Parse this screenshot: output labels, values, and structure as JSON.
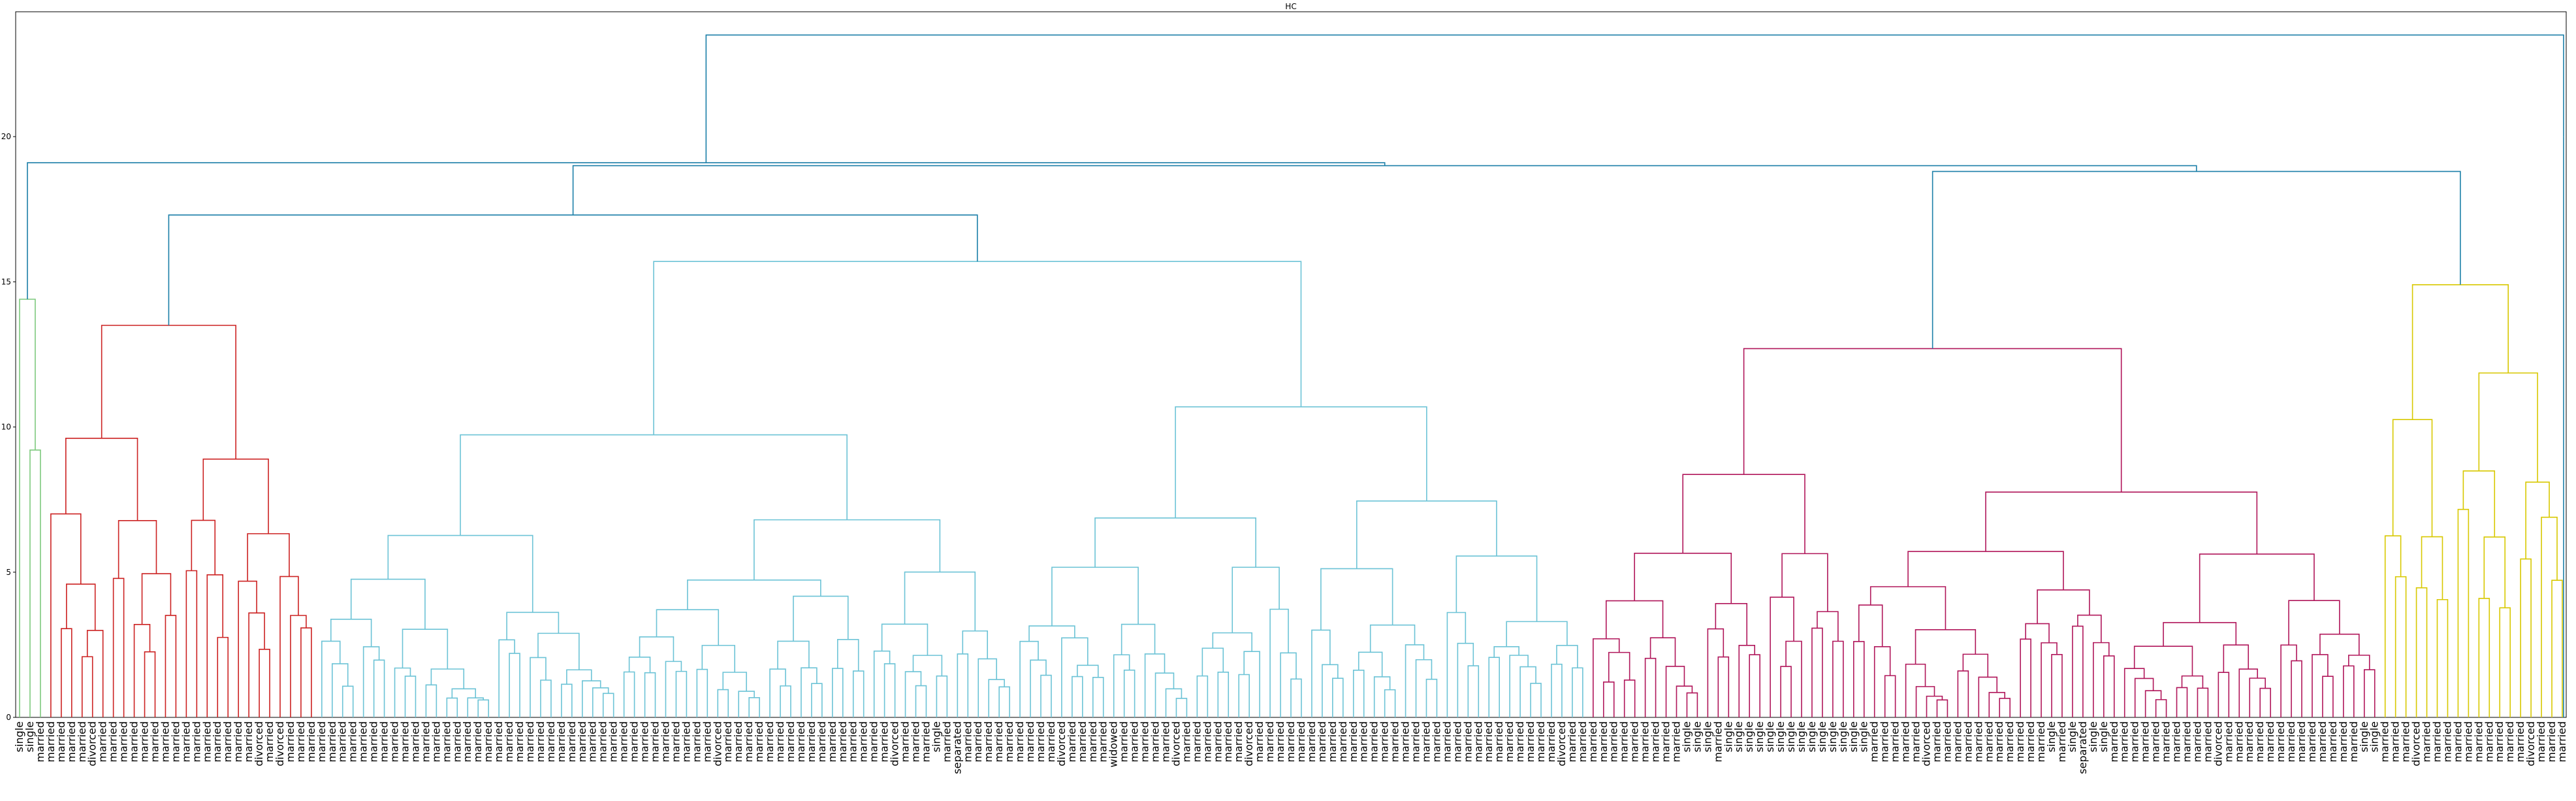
{
  "chart_data": {
    "type": "dendrogram",
    "title": "HC",
    "xlabel": "",
    "ylabel": "",
    "ylim": [
      0,
      24.3
    ],
    "yticks": [
      0,
      5,
      10,
      15,
      20
    ],
    "grid": false,
    "colors": {
      "top": "#1b7fa8",
      "green": "#7dc97d",
      "red": "#cc2222",
      "cyan": "#6cc3d6",
      "magenta": "#b0165a",
      "yellow": "#d8c800"
    },
    "clusters": [
      {
        "color": "green",
        "count": 3,
        "height": 14.4
      },
      {
        "color": "red",
        "count": 26,
        "height": 13.5
      },
      {
        "color": "cyan",
        "count": 122,
        "height": 15.7
      },
      {
        "color": "magenta",
        "count": 76,
        "height": 12.7
      },
      {
        "color": "yellow",
        "count": 18,
        "height": 14.9
      }
    ],
    "merges": [
      {
        "name": "red-cyan",
        "height": 17.3
      },
      {
        "name": "redcyan-magentayellow",
        "height": 19.0
      },
      {
        "name": "magenta-yellow",
        "height": 18.8
      },
      {
        "name": "green-rest",
        "height": 19.1
      },
      {
        "name": "root",
        "height": 23.5
      }
    ],
    "leaf_labels": {
      "green": [
        "single",
        "single",
        "married"
      ],
      "red": [
        "married",
        "married",
        "married",
        "married",
        "divorced",
        "married",
        "married",
        "married",
        "married",
        "married",
        "married",
        "married",
        "married",
        "married",
        "married",
        "married",
        "married",
        "married",
        "married",
        "married",
        "divorced",
        "married",
        "divorced",
        "married",
        "married",
        "married"
      ],
      "cyan": [
        "married",
        "married",
        "married",
        "married",
        "married",
        "married",
        "married",
        "married",
        "married",
        "married",
        "married",
        "married",
        "married",
        "married",
        "married",
        "married",
        "married",
        "married",
        "married",
        "married",
        "married",
        "married",
        "married",
        "married",
        "married",
        "married",
        "married",
        "married",
        "married",
        "married",
        "married",
        "married",
        "married",
        "married",
        "married",
        "married",
        "married",
        "married",
        "divorced",
        "married",
        "married",
        "married",
        "married",
        "married",
        "married",
        "married",
        "married",
        "married",
        "married",
        "married",
        "married",
        "married",
        "married",
        "married",
        "married",
        "divorced",
        "married",
        "married",
        "married",
        "single",
        "married",
        "separated",
        "married",
        "married",
        "married",
        "married",
        "married",
        "married",
        "married",
        "married",
        "married",
        "divorced",
        "married",
        "married",
        "married",
        "married",
        "widowed",
        "married",
        "married",
        "married",
        "married",
        "married",
        "divorced",
        "married",
        "married",
        "married",
        "married",
        "married",
        "married",
        "divorced",
        "married",
        "married",
        "married",
        "married",
        "married",
        "married",
        "married",
        "married",
        "married",
        "married",
        "married",
        "married",
        "married",
        "married",
        "married",
        "married",
        "married",
        "married",
        "married",
        "married",
        "married",
        "married",
        "married",
        "married",
        "married",
        "married",
        "married",
        "married",
        "married",
        "divorced",
        "married",
        "married"
      ],
      "magenta": [
        "married",
        "married",
        "married",
        "married",
        "married",
        "married",
        "married",
        "married",
        "married",
        "single",
        "single",
        "single",
        "married",
        "single",
        "single",
        "single",
        "single",
        "single",
        "single",
        "single",
        "single",
        "single",
        "single",
        "single",
        "single",
        "single",
        "single",
        "married",
        "married",
        "married",
        "married",
        "married",
        "divorced",
        "married",
        "married",
        "married",
        "married",
        "married",
        "married",
        "married",
        "married",
        "married",
        "married",
        "married",
        "single",
        "married",
        "single",
        "separated",
        "single",
        "single",
        "married",
        "married",
        "married",
        "married",
        "married",
        "married",
        "married",
        "married",
        "married",
        "married",
        "divorced",
        "married",
        "married",
        "married",
        "married",
        "married",
        "married",
        "married",
        "married",
        "married",
        "married",
        "married",
        "married",
        "married",
        "single",
        "single"
      ],
      "yellow": [
        "married",
        "married",
        "married",
        "divorced",
        "married",
        "married",
        "married",
        "married",
        "married",
        "married",
        "married",
        "married",
        "married",
        "married",
        "divorced",
        "married",
        "married",
        "married"
      ]
    }
  }
}
